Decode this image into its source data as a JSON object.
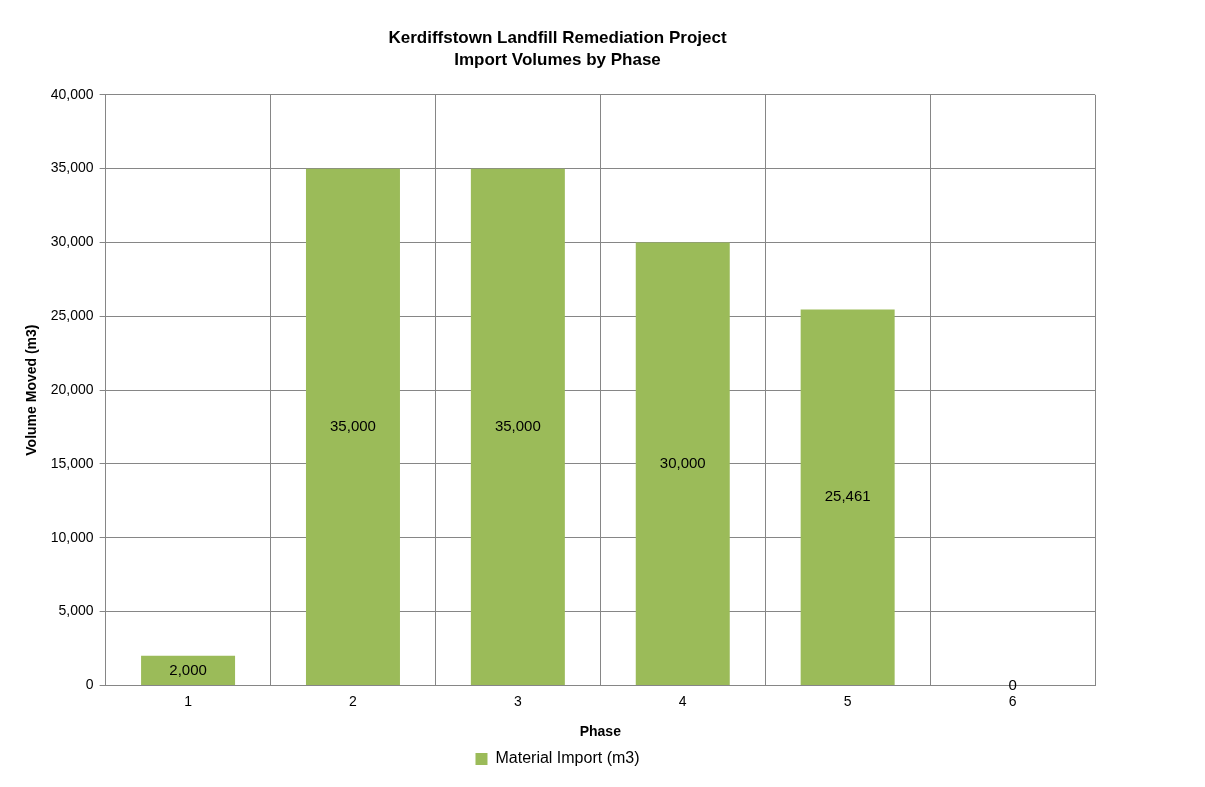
{
  "chart_data": {
    "type": "bar",
    "title": "Kerdiffstown Landfill Remediation Project",
    "subtitle": "Import Volumes by Phase",
    "xlabel": "Phase",
    "ylabel": "Volume Moved (m3)",
    "categories": [
      "1",
      "2",
      "3",
      "4",
      "5",
      "6"
    ],
    "series": [
      {
        "name": "Material Import (m3)",
        "color": "#9bbb59",
        "values": [
          2000,
          35000,
          35000,
          30000,
          25461,
          0
        ],
        "value_labels": [
          "2,000",
          "35,000",
          "35,000",
          "30,000",
          "25,461",
          "0"
        ]
      }
    ],
    "ylim": [
      0,
      40000
    ],
    "yticks": [
      {
        "value": 0,
        "label": "0"
      },
      {
        "value": 5000,
        "label": "5,000"
      },
      {
        "value": 10000,
        "label": "10,000"
      },
      {
        "value": 15000,
        "label": "15,000"
      },
      {
        "value": 20000,
        "label": "20,000"
      },
      {
        "value": 25000,
        "label": "25,000"
      },
      {
        "value": 30000,
        "label": "30,000"
      },
      {
        "value": 35000,
        "label": "35,000"
      },
      {
        "value": 40000,
        "label": "40,000"
      }
    ],
    "grid": true,
    "legend": "bottom"
  }
}
